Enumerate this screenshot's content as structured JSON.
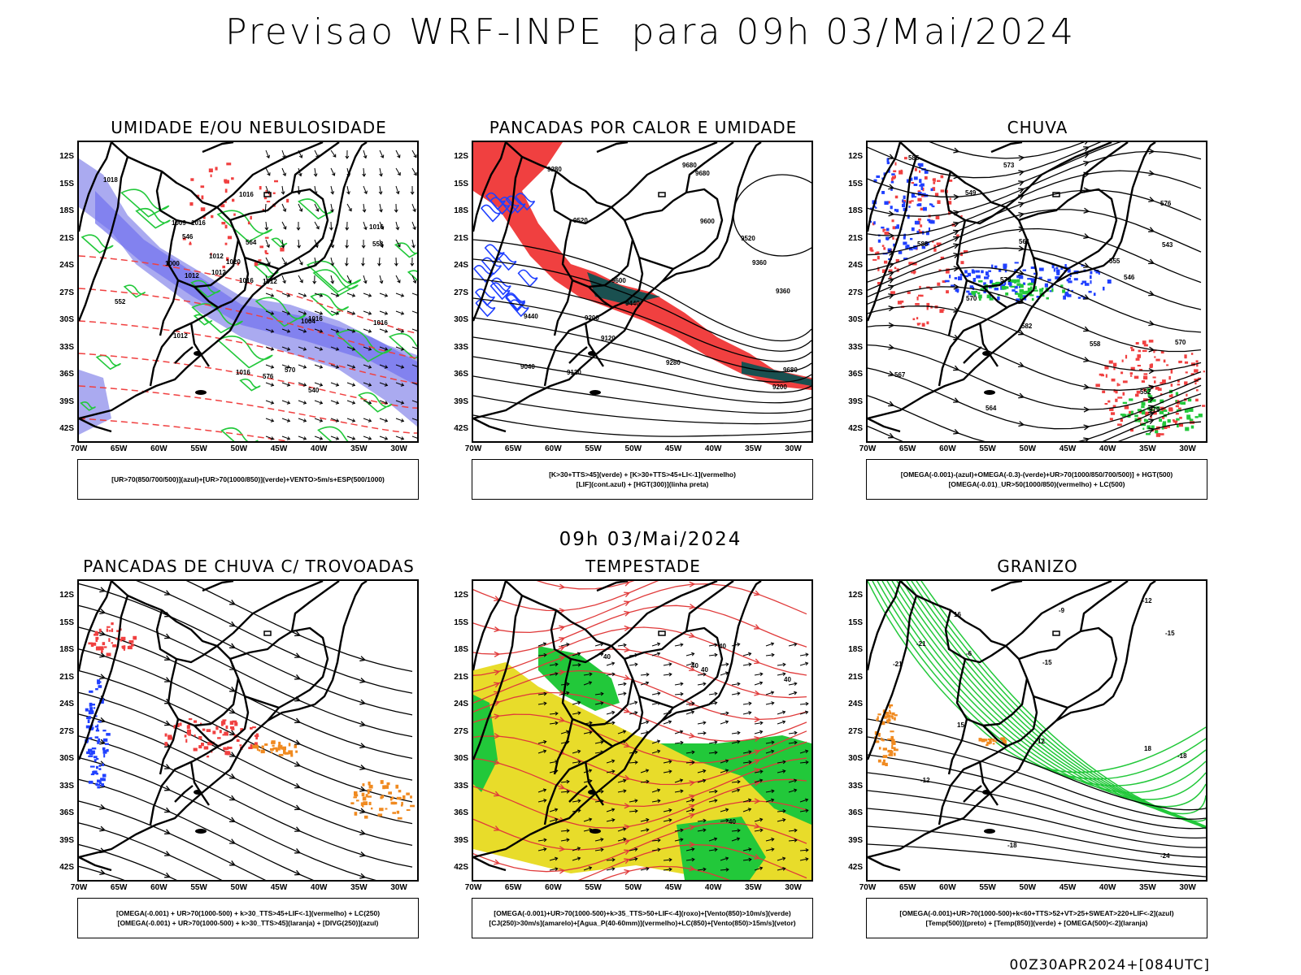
{
  "main_title": "Previsao WRF-INPE  para 09h 03/Mai/2024",
  "mid_date": "09h 03/Mai/2024",
  "footer": "00Z30APR2024+[084UTC]",
  "lat_labels": [
    "12S",
    "15S",
    "18S",
    "21S",
    "24S",
    "27S",
    "30S",
    "33S",
    "36S",
    "39S",
    "42S"
  ],
  "lon_labels": [
    "70W",
    "65W",
    "60W",
    "55W",
    "50W",
    "45W",
    "40W",
    "35W",
    "30W"
  ],
  "panels": [
    {
      "title": "UMIDADE E/OU NEBULOSIDADE",
      "legend": [
        "[UR>70(850/700/500)](azul)+[UR>70(1000/850)](verde)+VENTO>5m/s+ESP(500/1000)"
      ],
      "contour_labels": [
        "1016",
        "1012",
        "1012",
        "1016",
        "1018",
        "1016",
        "1020",
        "1016",
        "1012",
        "1016",
        "1016",
        "1012",
        "1016",
        "1009",
        "1004",
        "1012",
        "1000",
        "576",
        "570",
        "564",
        "558",
        "552",
        "546",
        "540"
      ]
    },
    {
      "title": "PANCADAS POR CALOR E UMIDADE",
      "legend": [
        "[K>30+TTS>45](verde) + [K>30+TTS>45+LI<-1](vermelho)",
        "[LIF](cont.azul) + [HGT(300)](linha preta)"
      ],
      "contour_labels": [
        "9680",
        "9680",
        "9680",
        "9600",
        "9520",
        "9440",
        "9360",
        "9280",
        "9200",
        "9120",
        "9600",
        "9520",
        "9440",
        "9360",
        "9280",
        "9200",
        "9120",
        "9040"
      ]
    },
    {
      "title": "CHUVA",
      "legend": [
        "[OMEGA(-0.001)-(azul)+OMEGA(-0.3)-(verde)+UR>70(1000/850/700/500)] + HGT(500)",
        "[OMEGA(-0.01)_UR>50(1000/850)(vermelho) + LC(500)"
      ],
      "contour_labels": [
        "588",
        "585",
        "582",
        "579",
        "576",
        "573",
        "570",
        "567",
        "564",
        "561",
        "558",
        "555",
        "552",
        "549",
        "546",
        "543",
        "579",
        "570"
      ]
    },
    {
      "title": "PANCADAS DE CHUVA C/ TROVOADAS",
      "legend": [
        "[OMEGA(-0.001) + UR>70(1000-500) + k>30_TTS>45+LIF<-1](vermelho) + LC(250)",
        "[OMEGA(-0.001) + UR>70(1000-500) + k>30_TTS>45](laranja) + [DIVG(250)](azul)"
      ],
      "contour_labels": []
    },
    {
      "title": "TEMPESTADE",
      "legend": [
        "[OMEGA(-0.001)+UR>70(1000-500)+k>35_TTS>50+LIF<-4](roxo)+[Vento(850)>10m/s](verde)",
        "[CJ(250)>30m/s](amarelo)+[Agua_P(40-60mm)](vermelho)+LC(850)+[Vento(850)>15m/s](vetor)"
      ],
      "contour_labels": [
        "40",
        "40",
        "40",
        "40",
        "40",
        "40"
      ]
    },
    {
      "title": "GRANIZO",
      "legend": [
        "[OMEGA(-0.001)+UR>70(1000-500)+k<60+TTS>52+VT>25+SWEAT>220+LIF<-2](azul)",
        "[Temp(500)](preto) + [Temp(850)](verde) + [OMEGA(500)<-2](laranja)"
      ],
      "contour_labels": [
        "-6",
        "-9",
        "-12",
        "-15",
        "-18",
        "-21",
        "-24",
        "-21",
        "-18",
        "-15",
        "-12",
        "12",
        "15",
        "18",
        "16"
      ]
    }
  ],
  "colors": {
    "blue": "#2040ff",
    "lightblue": "#aaaaf0",
    "green": "#22c83a",
    "red": "#f04040",
    "darkteal": "#1a5050",
    "yellow": "#e8dc2a",
    "orange": "#f08a20",
    "lightred": "#f07070"
  }
}
